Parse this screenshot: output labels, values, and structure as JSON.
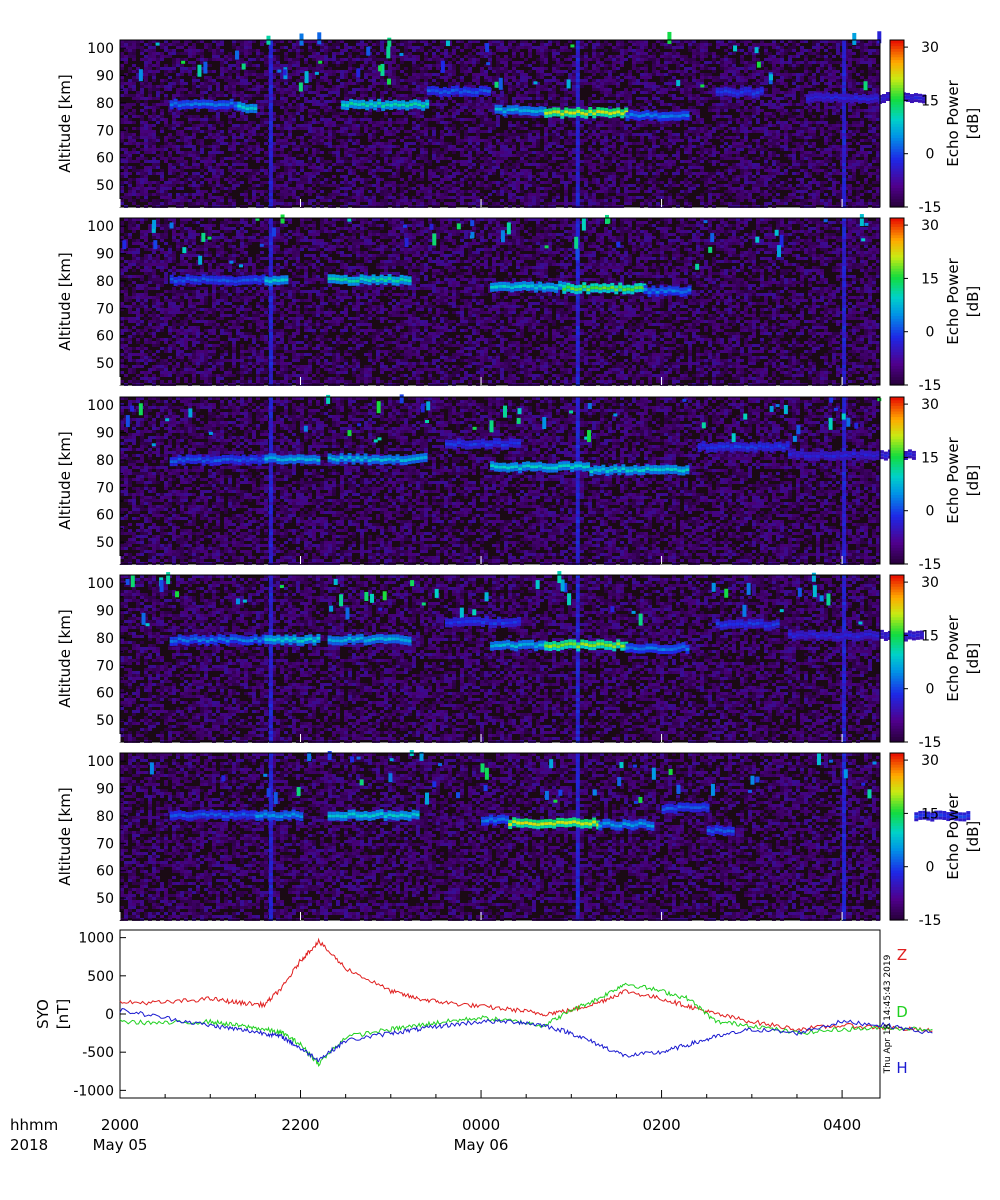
{
  "colors": {
    "background_dark": "#1a0a14",
    "z_line": "#e02020",
    "d_line": "#20d020",
    "h_line": "#1a1ad0"
  },
  "chart_data": [
    {
      "type": "heatmap",
      "panel": 1,
      "ylabel": "Altitude [km]",
      "yticks": [
        "50",
        "60",
        "70",
        "80",
        "90",
        "100"
      ],
      "ylim": [
        42,
        103
      ],
      "colorbar_label_line1": "Echo Power",
      "colorbar_label_line2": "[dB]",
      "colorbar_ticks": [
        "30",
        "15",
        "0",
        "-15"
      ],
      "colorbar_range": [
        -15,
        32
      ],
      "echo_layers": [
        {
          "t0": 0.55,
          "t1": 1.3,
          "alt": 79.5,
          "db": 4
        },
        {
          "t0": 1.3,
          "t1": 1.5,
          "alt": 78.5,
          "db": 10
        },
        {
          "t0": 2.45,
          "t1": 3.4,
          "alt": 79.5,
          "db": 12
        },
        {
          "t0": 4.15,
          "t1": 4.7,
          "alt": 77.5,
          "db": 8
        },
        {
          "t0": 4.7,
          "t1": 5.6,
          "alt": 76.5,
          "db": 22
        },
        {
          "t0": 5.6,
          "t1": 6.3,
          "alt": 75.5,
          "db": 4
        },
        {
          "t0": 6.6,
          "t1": 7.1,
          "alt": 84,
          "db": 0
        },
        {
          "t0": 7.6,
          "t1": 8.9,
          "alt": 82,
          "db": -2
        },
        {
          "t0": 3.4,
          "t1": 4.1,
          "alt": 84.5,
          "db": 2
        }
      ]
    },
    {
      "type": "heatmap",
      "panel": 2,
      "ylabel": "Altitude [km]",
      "yticks": [
        "50",
        "60",
        "70",
        "80",
        "90",
        "100"
      ],
      "ylim": [
        42,
        103
      ],
      "colorbar_label_line1": "Echo Power",
      "colorbar_label_line2": "[dB]",
      "colorbar_ticks": [
        "30",
        "15",
        "0",
        "-15"
      ],
      "colorbar_range": [
        -15,
        32
      ],
      "echo_layers": [
        {
          "t0": 0.55,
          "t1": 1.6,
          "alt": 80.5,
          "db": 2
        },
        {
          "t0": 1.6,
          "t1": 1.85,
          "alt": 80.5,
          "db": 10
        },
        {
          "t0": 2.3,
          "t1": 3.2,
          "alt": 80.5,
          "db": 12
        },
        {
          "t0": 4.1,
          "t1": 4.9,
          "alt": 78,
          "db": 10
        },
        {
          "t0": 4.9,
          "t1": 5.8,
          "alt": 77.5,
          "db": 18
        },
        {
          "t0": 5.8,
          "t1": 6.3,
          "alt": 76.5,
          "db": 4
        }
      ]
    },
    {
      "type": "heatmap",
      "panel": 3,
      "ylabel": "Altitude [km]",
      "yticks": [
        "50",
        "60",
        "70",
        "80",
        "90",
        "100"
      ],
      "ylim": [
        42,
        103
      ],
      "colorbar_label_line1": "Echo Power",
      "colorbar_label_line2": "[dB]",
      "colorbar_ticks": [
        "30",
        "15",
        "0",
        "-15"
      ],
      "colorbar_range": [
        -15,
        32
      ],
      "echo_layers": [
        {
          "t0": 0.55,
          "t1": 1.6,
          "alt": 80,
          "db": 2
        },
        {
          "t0": 1.6,
          "t1": 2.2,
          "alt": 80.5,
          "db": 8
        },
        {
          "t0": 2.3,
          "t1": 3.4,
          "alt": 80.5,
          "db": 8
        },
        {
          "t0": 3.6,
          "t1": 4.4,
          "alt": 86,
          "db": 0
        },
        {
          "t0": 4.1,
          "t1": 5.2,
          "alt": 77.5,
          "db": 10
        },
        {
          "t0": 5.2,
          "t1": 6.3,
          "alt": 76.5,
          "db": 10
        },
        {
          "t0": 6.4,
          "t1": 7.4,
          "alt": 85,
          "db": 0
        },
        {
          "t0": 7.4,
          "t1": 8.8,
          "alt": 82,
          "db": -2
        }
      ]
    },
    {
      "type": "heatmap",
      "panel": 4,
      "ylabel": "Altitude [km]",
      "yticks": [
        "50",
        "60",
        "70",
        "80",
        "90",
        "100"
      ],
      "ylim": [
        42,
        103
      ],
      "colorbar_label_line1": "Echo Power",
      "colorbar_label_line2": "[dB]",
      "colorbar_ticks": [
        "30",
        "15",
        "0",
        "-15"
      ],
      "colorbar_range": [
        -15,
        32
      ],
      "echo_layers": [
        {
          "t0": 0.55,
          "t1": 1.6,
          "alt": 79.5,
          "db": 4
        },
        {
          "t0": 1.6,
          "t1": 2.2,
          "alt": 79.5,
          "db": 10
        },
        {
          "t0": 2.3,
          "t1": 3.2,
          "alt": 79.5,
          "db": 8
        },
        {
          "t0": 3.6,
          "t1": 4.4,
          "alt": 86,
          "db": 0
        },
        {
          "t0": 4.1,
          "t1": 4.7,
          "alt": 77.5,
          "db": 8
        },
        {
          "t0": 4.7,
          "t1": 5.6,
          "alt": 77.5,
          "db": 20
        },
        {
          "t0": 5.6,
          "t1": 6.3,
          "alt": 76.5,
          "db": 4
        },
        {
          "t0": 6.6,
          "t1": 7.3,
          "alt": 85,
          "db": 0
        },
        {
          "t0": 7.4,
          "t1": 8.9,
          "alt": 81,
          "db": -2
        }
      ]
    },
    {
      "type": "heatmap",
      "panel": 5,
      "ylabel": "Altitude [km]",
      "yticks": [
        "50",
        "60",
        "70",
        "80",
        "90",
        "100"
      ],
      "ylim": [
        42,
        103
      ],
      "colorbar_label_line1": "Echo Power",
      "colorbar_label_line2": "[dB]",
      "colorbar_ticks": [
        "30",
        "15",
        "0",
        "-15"
      ],
      "colorbar_range": [
        -15,
        32
      ],
      "echo_layers": [
        {
          "t0": 0.55,
          "t1": 1.5,
          "alt": 80.5,
          "db": 2
        },
        {
          "t0": 1.5,
          "t1": 2.0,
          "alt": 80.5,
          "db": 6
        },
        {
          "t0": 2.3,
          "t1": 3.3,
          "alt": 80.5,
          "db": 10
        },
        {
          "t0": 4.0,
          "t1": 4.3,
          "alt": 78.5,
          "db": 4
        },
        {
          "t0": 4.3,
          "t1": 5.3,
          "alt": 77.5,
          "db": 22
        },
        {
          "t0": 5.3,
          "t1": 5.9,
          "alt": 77,
          "db": 6
        },
        {
          "t0": 6.0,
          "t1": 6.5,
          "alt": 83,
          "db": 2
        },
        {
          "t0": 6.5,
          "t1": 6.8,
          "alt": 75,
          "db": 2
        },
        {
          "t0": 8.8,
          "t1": 9.4,
          "alt": 80,
          "db": 0
        }
      ]
    },
    {
      "type": "line",
      "ylabel_line1": "SYO",
      "ylabel_line2": "[nT]",
      "yticks": [
        "1000",
        "500",
        "0",
        "-500",
        "-1000"
      ],
      "ylim": [
        -1100,
        1100
      ],
      "timestamp": "Thu Apr 18 14:45:43 2019",
      "x_hours_since_start": [
        0,
        0.5,
        1.0,
        1.3,
        1.6,
        1.8,
        2.0,
        2.2,
        2.5,
        3.0,
        3.3,
        3.6,
        4.0,
        4.4,
        4.7,
        5.0,
        5.3,
        5.6,
        6.0,
        6.3,
        6.6,
        7.0,
        7.5,
        8.0,
        8.5,
        9.0
      ],
      "series": [
        {
          "name": "Z",
          "values": [
            150,
            150,
            200,
            150,
            120,
            350,
            700,
            950,
            600,
            300,
            200,
            150,
            100,
            50,
            0,
            50,
            150,
            300,
            200,
            100,
            0,
            -100,
            -200,
            -150,
            -180,
            -220
          ]
        },
        {
          "name": "D",
          "values": [
            -100,
            -120,
            -100,
            -150,
            -200,
            -250,
            -400,
            -650,
            -300,
            -200,
            -150,
            -100,
            -50,
            -100,
            -150,
            50,
            200,
            400,
            300,
            200,
            -100,
            -150,
            -250,
            -200,
            -180,
            -200
          ]
        },
        {
          "name": "H",
          "values": [
            50,
            -50,
            -150,
            -200,
            -250,
            -300,
            -450,
            -600,
            -350,
            -250,
            -200,
            -150,
            -100,
            -100,
            -150,
            -250,
            -400,
            -550,
            -500,
            -400,
            -300,
            -200,
            -250,
            -100,
            -150,
            -250
          ]
        }
      ]
    }
  ],
  "time_axis": {
    "header_line1": "hhmm",
    "header_line2": "2018",
    "ticks": [
      {
        "label": "2000",
        "date": "May 05",
        "hours": 0
      },
      {
        "label": "2200",
        "date": "",
        "hours": 2
      },
      {
        "label": "0000",
        "date": "May 06",
        "hours": 4
      },
      {
        "label": "0200",
        "date": "",
        "hours": 6
      },
      {
        "label": "0400",
        "date": "",
        "hours": 8
      }
    ],
    "range_hours": [
      0,
      8
    ]
  }
}
